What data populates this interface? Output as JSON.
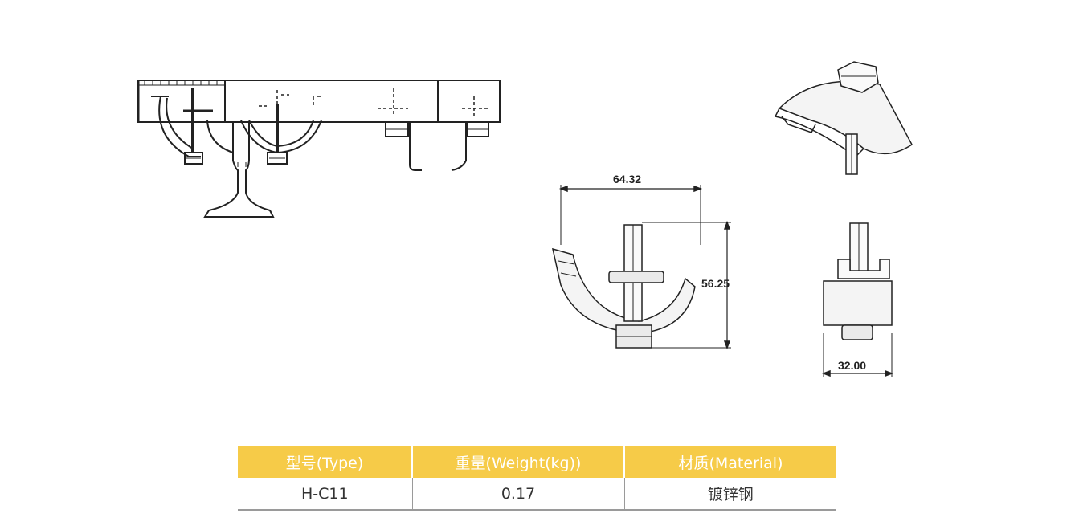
{
  "dimensions": {
    "width": "64.32",
    "height": "56.25",
    "depth": "32.00"
  },
  "spec_table": {
    "headers": [
      "型号(Type)",
      "重量(Weight(kg))",
      "材质(Material)"
    ],
    "row": [
      "H-C11",
      "0.17",
      "镀锌钢"
    ]
  },
  "colors": {
    "header_bg": "#f6cb48",
    "line": "#222222"
  }
}
